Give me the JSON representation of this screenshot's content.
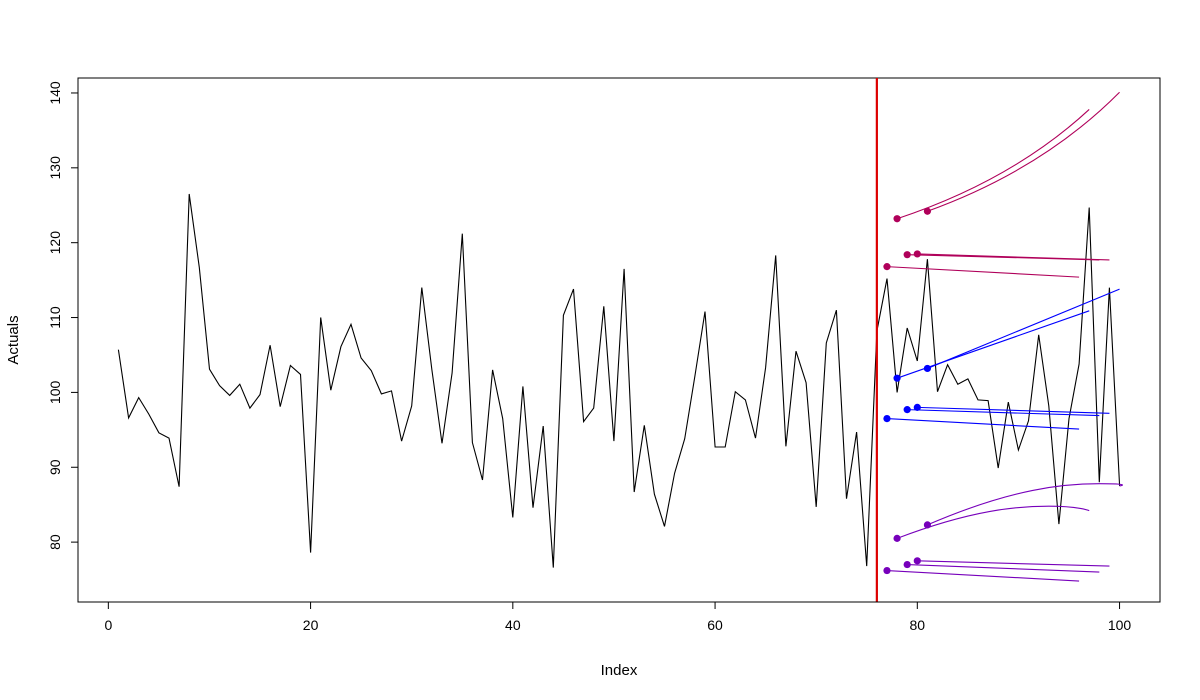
{
  "chart_data": {
    "type": "line",
    "title": "",
    "xlabel": "Index",
    "ylabel": "Actuals",
    "xlim": [
      -3,
      104
    ],
    "ylim": [
      72,
      142
    ],
    "x_ticks": [
      0,
      20,
      40,
      60,
      80,
      100
    ],
    "y_ticks": [
      80,
      90,
      100,
      110,
      120,
      130,
      140
    ],
    "x_tick_labels": [
      "0",
      "20",
      "40",
      "60",
      "80",
      "100"
    ],
    "y_tick_labels": [
      "80",
      "90",
      "100",
      "110",
      "120",
      "130",
      "140"
    ],
    "grid": false,
    "vline": {
      "x": 76,
      "color": "#dd0000"
    },
    "actuals": {
      "color": "#000000",
      "x": [
        1,
        2,
        3,
        4,
        5,
        6,
        7,
        8,
        9,
        10,
        11,
        12,
        13,
        14,
        15,
        16,
        17,
        18,
        19,
        20,
        21,
        22,
        23,
        24,
        25,
        26,
        27,
        28,
        29,
        30,
        31,
        32,
        33,
        34,
        35,
        36,
        37,
        38,
        39,
        40,
        41,
        42,
        43,
        44,
        45,
        46,
        47,
        48,
        49,
        50,
        51,
        52,
        53,
        54,
        55,
        56,
        57,
        58,
        59,
        60,
        61,
        62,
        63,
        64,
        65,
        66,
        67,
        68,
        69,
        70,
        71,
        72,
        73,
        74,
        75,
        76,
        77,
        78,
        79,
        80,
        81,
        82,
        83,
        84,
        85,
        86,
        87,
        88,
        89,
        90,
        91,
        92,
        93,
        94,
        95,
        96,
        97,
        98,
        99,
        100
      ],
      "y": [
        105.7,
        96.6,
        99.3,
        97.1,
        94.6,
        93.9,
        87.4,
        126.5,
        116.7,
        103.1,
        100.9,
        99.6,
        101.1,
        97.9,
        99.7,
        106.3,
        98.1,
        103.6,
        102.4,
        78.6,
        110.0,
        100.3,
        106.1,
        109.1,
        104.6,
        102.9,
        99.8,
        100.2,
        93.5,
        98.2,
        114.0,
        103.0,
        93.2,
        102.6,
        121.2,
        93.3,
        88.3,
        103.0,
        96.5,
        83.3,
        100.8,
        84.6,
        95.5,
        76.6,
        110.3,
        113.8,
        96.1,
        97.9,
        111.5,
        93.5,
        116.5,
        86.7,
        95.6,
        86.4,
        82.1,
        89.2,
        93.8,
        102.1,
        110.8,
        92.7,
        92.7,
        100.1,
        99.0,
        93.9,
        103.3,
        118.3,
        92.8,
        105.5,
        101.3,
        84.7,
        106.6,
        111.0,
        85.8,
        94.7,
        76.8,
        108.2,
        115.2,
        100.0,
        108.6,
        104.2,
        117.8,
        100.1,
        103.7,
        101.1,
        101.8,
        99.0,
        98.9,
        89.9,
        98.7,
        92.3,
        96.2,
        107.7,
        98.2,
        82.4,
        96.5,
        103.8,
        124.7,
        88.0,
        114.0,
        87.5
      ]
    },
    "forecasts": [
      {
        "color": "#b0005a",
        "x_start": 78,
        "y_start": 123.2,
        "x_end": 97,
        "y_end": 137.8,
        "curve": 0.8
      },
      {
        "color": "#b0005a",
        "x_start": 81,
        "y_start": 124.2,
        "x_end": 100,
        "y_end": 140.1,
        "curve": 0.8
      },
      {
        "color": "#b0005a",
        "x_start": 77,
        "y_start": 116.8,
        "x_end": 96,
        "y_end": 115.4,
        "curve": 0
      },
      {
        "color": "#b0005a",
        "x_start": 79,
        "y_start": 118.4,
        "x_end": 98,
        "y_end": 117.7,
        "curve": 0
      },
      {
        "color": "#b0005a",
        "x_start": 80,
        "y_start": 118.5,
        "x_end": 99,
        "y_end": 117.7,
        "curve": 0
      },
      {
        "color": "#0000ff",
        "x_start": 78,
        "y_start": 101.9,
        "x_end": 97,
        "y_end": 110.9,
        "curve": 0
      },
      {
        "color": "#0000ff",
        "x_start": 81,
        "y_start": 103.2,
        "x_end": 100,
        "y_end": 113.8,
        "curve": 0
      },
      {
        "color": "#0000ff",
        "x_start": 77,
        "y_start": 96.5,
        "x_end": 96,
        "y_end": 95.1,
        "curve": 0
      },
      {
        "color": "#0000ff",
        "x_start": 79,
        "y_start": 97.7,
        "x_end": 98,
        "y_end": 96.9,
        "curve": 0
      },
      {
        "color": "#0000ff",
        "x_start": 80,
        "y_start": 98.0,
        "x_end": 99,
        "y_end": 97.2,
        "curve": 0
      },
      {
        "color": "#7700bb",
        "x_start": 78,
        "y_start": 80.5,
        "x_end": 97,
        "y_end": 84.2,
        "curve": -1.0,
        "peak_x": 93,
        "peak_y": 84.8
      },
      {
        "color": "#7700bb",
        "x_start": 81,
        "y_start": 82.3,
        "x_end": 100,
        "y_end": 87.5,
        "curve": -1.0,
        "peak_x": 98,
        "peak_y": 87.8
      },
      {
        "color": "#7700bb",
        "x_start": 77,
        "y_start": 76.2,
        "x_end": 96,
        "y_end": 74.8,
        "curve": 0
      },
      {
        "color": "#7700bb",
        "x_start": 79,
        "y_start": 77.0,
        "x_end": 98,
        "y_end": 76.0,
        "curve": 0
      },
      {
        "color": "#7700bb",
        "x_start": 80,
        "y_start": 77.5,
        "x_end": 99,
        "y_end": 76.8,
        "curve": 0
      }
    ]
  }
}
